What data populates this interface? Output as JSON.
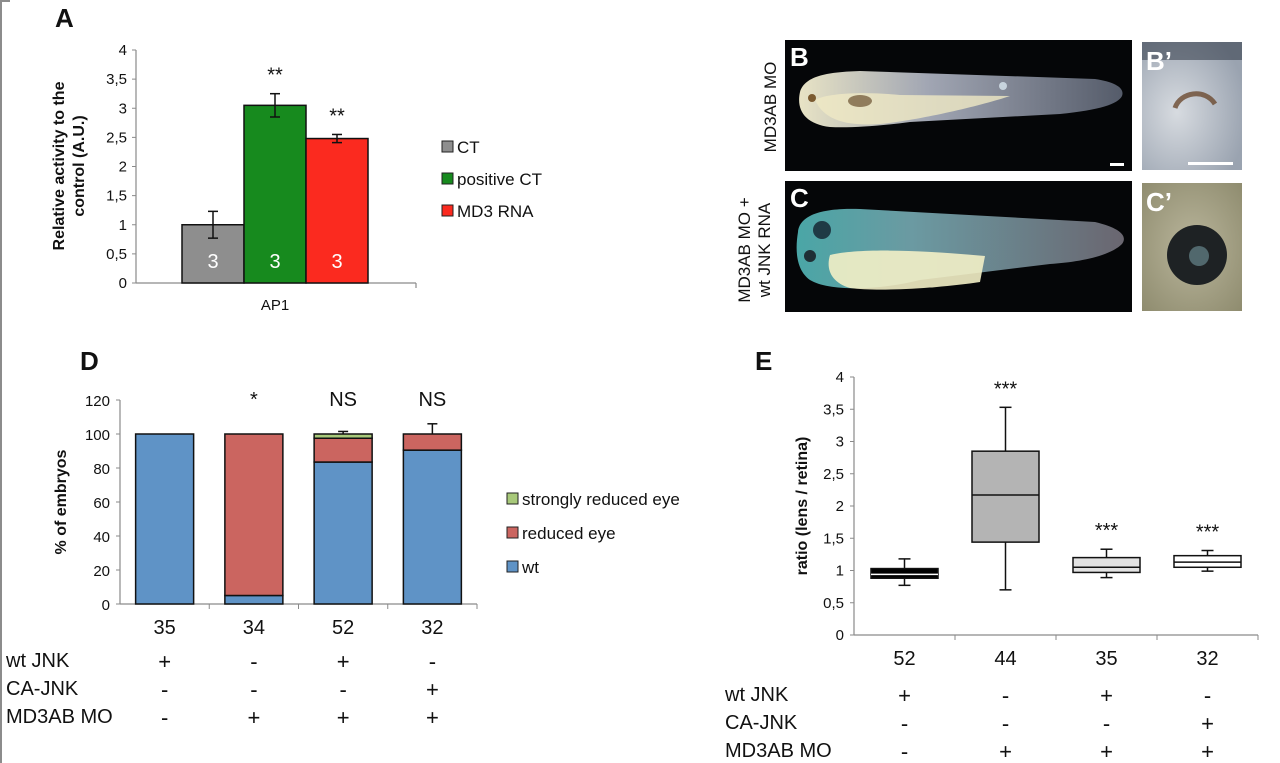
{
  "panels": {
    "A": "A",
    "B": "B",
    "Bp": "B’",
    "C": "C",
    "Cp": "C’",
    "D": "D",
    "E": "E"
  },
  "photos": {
    "row_B_label": "MD3AB MO",
    "row_C_label_line1": "MD3AB MO +",
    "row_C_label_line2": "wt JNK RNA"
  },
  "chart_data": [
    {
      "id": "A",
      "type": "bar",
      "title": "",
      "xlabel": "",
      "ylabel_line1": "Relative activity to the",
      "ylabel_line2": "control (A.U.)",
      "ylim": [
        0,
        4
      ],
      "yticks": [
        "0",
        "0,5",
        "1",
        "1,5",
        "2",
        "2,5",
        "3",
        "3,5",
        "4"
      ],
      "yticks_values": [
        0,
        0.5,
        1,
        1.5,
        2,
        2.5,
        3,
        3.5,
        4
      ],
      "categories": [
        "AP1"
      ],
      "grid": false,
      "legend_position": "right",
      "series": [
        {
          "name": "CT",
          "color": "#8e8e8e",
          "values": [
            1.0
          ],
          "error": [
            0.23
          ],
          "n_label": "3",
          "significance": ""
        },
        {
          "name": "positive CT",
          "color": "#178a1e",
          "values": [
            3.05
          ],
          "error": [
            0.2
          ],
          "n_label": "3",
          "significance": "**"
        },
        {
          "name": "MD3 RNA",
          "color": "#fb2a1f",
          "values": [
            2.48
          ],
          "error": [
            0.07
          ],
          "n_label": "3",
          "significance": "**"
        }
      ]
    },
    {
      "id": "D",
      "type": "bar",
      "stacked": true,
      "title": "",
      "xlabel": "",
      "ylabel": "% of embryos",
      "ylim": [
        0,
        120
      ],
      "yticks": [
        "0",
        "20",
        "40",
        "60",
        "80",
        "100",
        "120"
      ],
      "yticks_values": [
        0,
        20,
        40,
        60,
        80,
        100,
        120
      ],
      "categories": [
        "35",
        "34",
        "52",
        "32"
      ],
      "significance": [
        "",
        "*",
        "NS",
        "NS"
      ],
      "grid": false,
      "legend_position": "right",
      "series": [
        {
          "name": "wt",
          "color": "#5f93c6",
          "values": [
            100,
            5,
            83.5,
            90.5
          ],
          "error": [
            0,
            6,
            5,
            0
          ]
        },
        {
          "name": "reduced eye",
          "color": "#cb6560",
          "values": [
            0,
            95,
            14,
            9.5
          ],
          "error": [
            0,
            0,
            0,
            6
          ]
        },
        {
          "name": "strongly reduced eye",
          "color": "#a8c97a",
          "values": [
            0,
            0,
            2.5,
            0
          ],
          "error": [
            0,
            0,
            1.5,
            0
          ]
        }
      ],
      "legend_order": [
        "strongly reduced eye",
        "reduced eye",
        "wt"
      ],
      "conditions": [
        {
          "label": "wt JNK",
          "values": [
            "+",
            "-",
            "+",
            "-"
          ]
        },
        {
          "label": "CA-JNK",
          "values": [
            "-",
            "-",
            "-",
            "+"
          ]
        },
        {
          "label": "MD3AB MO",
          "values": [
            "-",
            "+",
            "+",
            "+"
          ]
        }
      ]
    },
    {
      "id": "E",
      "type": "box",
      "title": "",
      "xlabel": "",
      "ylabel": "ratio (lens / retina)",
      "ylim": [
        0,
        4
      ],
      "yticks": [
        "0",
        "0,5",
        "1",
        "1,5",
        "2",
        "2,5",
        "3",
        "3,5",
        "4"
      ],
      "yticks_values": [
        0,
        0.5,
        1,
        1.5,
        2,
        2.5,
        3,
        3.5,
        4
      ],
      "categories": [
        "52",
        "44",
        "35",
        "32"
      ],
      "significance": [
        "",
        "***",
        "***",
        "***"
      ],
      "grid": false,
      "boxes": [
        {
          "min": 0.77,
          "q1": 0.88,
          "median": 0.94,
          "q3": 1.03,
          "max": 1.18,
          "fill": "#000000",
          "median_color": "#ffffff"
        },
        {
          "min": 0.7,
          "q1": 1.44,
          "median": 2.17,
          "q3": 2.85,
          "max": 3.53,
          "fill": "#b4b4b4",
          "median_color": "#111111"
        },
        {
          "min": 0.89,
          "q1": 0.97,
          "median": 1.05,
          "q3": 1.2,
          "max": 1.33,
          "fill": "#e2e2e2",
          "median_color": "#111111"
        },
        {
          "min": 0.99,
          "q1": 1.05,
          "median": 1.13,
          "q3": 1.23,
          "max": 1.31,
          "fill": "#ffffff",
          "median_color": "#111111"
        }
      ],
      "conditions": [
        {
          "label": "wt JNK",
          "values": [
            "+",
            "-",
            "+",
            "-"
          ]
        },
        {
          "label": "CA-JNK",
          "values": [
            "-",
            "-",
            "-",
            "+"
          ]
        },
        {
          "label": "MD3AB MO",
          "values": [
            "-",
            "+",
            "+",
            "+"
          ]
        }
      ]
    }
  ]
}
